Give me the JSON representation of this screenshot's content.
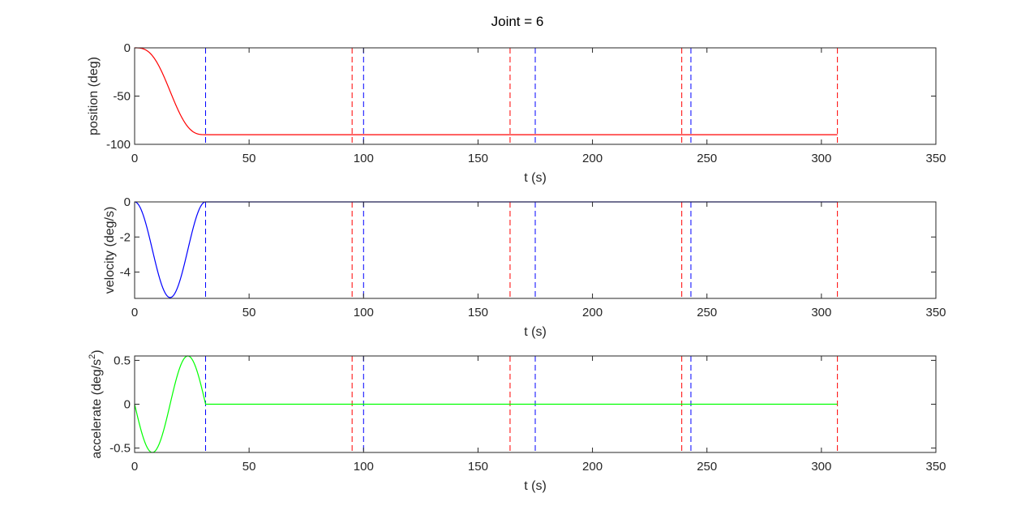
{
  "title": "Joint = 6",
  "chart_data": [
    {
      "type": "line",
      "xlabel": "t (s)",
      "ylabel": "position (deg)",
      "xlim": [
        0,
        350
      ],
      "ylim": [
        -100,
        0
      ],
      "xticks": [
        0,
        50,
        100,
        150,
        200,
        250,
        300,
        350
      ],
      "yticks": [
        -100,
        -50,
        0
      ],
      "series": [
        {
          "color": "#ff0000",
          "shape": "position",
          "t_move_end": 31,
          "t_end": 307,
          "start_value": 0,
          "end_value": -90
        }
      ]
    },
    {
      "type": "line",
      "xlabel": "t (s)",
      "ylabel": "velocity (deg/s)",
      "xlim": [
        0,
        350
      ],
      "ylim": [
        -5.5,
        0
      ],
      "xticks": [
        0,
        50,
        100,
        150,
        200,
        250,
        300,
        350
      ],
      "yticks": [
        -4,
        -2,
        0
      ],
      "series": [
        {
          "color": "#0000ff",
          "shape": "velocity",
          "t_move_end": 31,
          "t_end": 307,
          "min_value": -5.45
        }
      ]
    },
    {
      "type": "line",
      "xlabel": "t (s)",
      "ylabel": "accelerate (deg/s",
      "ylabel_superscript": "2",
      "ylabel_close": ")",
      "xlim": [
        0,
        350
      ],
      "ylim": [
        -0.55,
        0.55
      ],
      "xticks": [
        0,
        50,
        100,
        150,
        200,
        250,
        300,
        350
      ],
      "yticks": [
        -0.5,
        0,
        0.5
      ],
      "series": [
        {
          "color": "#00ff00",
          "shape": "acceleration",
          "t_move_end": 31,
          "t_end": 307,
          "amplitude": 0.55
        }
      ]
    }
  ],
  "vertical_markers": {
    "blue": {
      "color": "#0000ff",
      "t": [
        31,
        100,
        175,
        243
      ]
    },
    "red": {
      "color": "#ff0000",
      "t": [
        95,
        164,
        239,
        307
      ]
    }
  }
}
